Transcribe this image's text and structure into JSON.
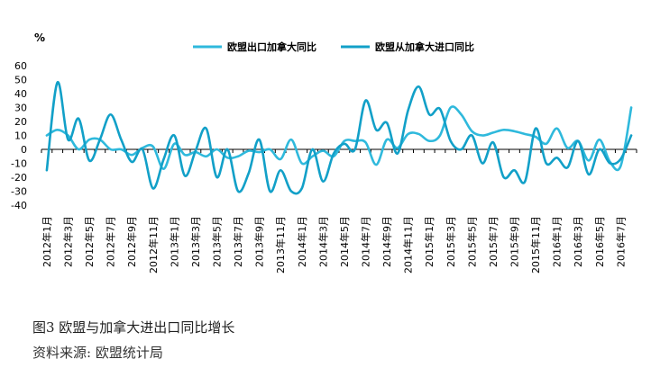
{
  "chart_data": {
    "type": "line",
    "unit_label": "%",
    "ylim": [
      -40,
      60
    ],
    "y_ticks": [
      60,
      50,
      40,
      30,
      20,
      10,
      0,
      -10,
      -20,
      -30,
      -40
    ],
    "categories": [
      "2012年1月",
      "2012年2月",
      "2012年3月",
      "2012年4月",
      "2012年5月",
      "2012年6月",
      "2012年7月",
      "2012年8月",
      "2012年9月",
      "2012年10月",
      "2012年11月",
      "2012年12月",
      "2013年1月",
      "2013年2月",
      "2013年3月",
      "2013年4月",
      "2013年5月",
      "2013年6月",
      "2013年7月",
      "2013年8月",
      "2013年9月",
      "2013年10月",
      "2013年11月",
      "2013年12月",
      "2014年1月",
      "2014年2月",
      "2014年3月",
      "2014年4月",
      "2014年5月",
      "2014年6月",
      "2014年7月",
      "2014年8月",
      "2014年9月",
      "2014年10月",
      "2014年11月",
      "2014年12月",
      "2015年1月",
      "2015年2月",
      "2015年3月",
      "2015年4月",
      "2015年5月",
      "2015年6月",
      "2015年7月",
      "2015年8月",
      "2015年9月",
      "2015年10月",
      "2015年11月",
      "2015年12月",
      "2016年1月",
      "2016年2月",
      "2016年3月",
      "2016年4月",
      "2016年5月",
      "2016年6月",
      "2016年7月",
      "2016年8月"
    ],
    "x_tick_labels": [
      "2012年1月",
      "2012年3月",
      "2012年5月",
      "2012年7月",
      "2012年9月",
      "2012年11月",
      "2013年1月",
      "2013年3月",
      "2013年5月",
      "2013年7月",
      "2013年9月",
      "2013年11月",
      "2014年1月",
      "2014年3月",
      "2014年5月",
      "2014年7月",
      "2014年9月",
      "2014年11月",
      "2015年1月",
      "2015年3月",
      "2015年5月",
      "2015年7月",
      "2015年9月",
      "2015年11月",
      "2016年1月",
      "2016年3月",
      "2016年5月",
      "2016年7月"
    ],
    "series": [
      {
        "name": "欧盟出口加拿大同比",
        "color": "#2fb9dc",
        "values": [
          10,
          14,
          10,
          0,
          7,
          7,
          0,
          0,
          -4,
          1,
          2,
          -14,
          4,
          -4,
          -2,
          -5,
          0,
          -6,
          -5,
          -1,
          -2,
          0,
          -7,
          7,
          -10,
          -5,
          -1,
          -5,
          6,
          6,
          5,
          -11,
          7,
          1,
          11,
          11,
          6,
          10,
          30,
          25,
          13,
          10,
          12,
          14,
          13,
          11,
          9,
          4,
          15,
          1,
          6,
          -8,
          7,
          -9,
          -12,
          30
        ]
      },
      {
        "name": "欧盟从加拿大进口同比",
        "color": "#12a0c8",
        "values": [
          -15,
          48,
          7,
          22,
          -8,
          7,
          25,
          7,
          -9,
          0,
          -28,
          -7,
          10,
          -19,
          -1,
          15,
          -20,
          0,
          -30,
          -17,
          7,
          -30,
          -15,
          -30,
          -28,
          0,
          -23,
          -3,
          4,
          0,
          35,
          14,
          19,
          -3,
          28,
          45,
          25,
          29,
          6,
          0,
          10,
          -10,
          5,
          -20,
          -15,
          -23,
          15,
          -10,
          -6,
          -13,
          6,
          -18,
          0,
          -10,
          -7,
          10
        ]
      }
    ]
  },
  "caption": {
    "title": "图3 欧盟与加拿大进出口同比增长",
    "source": "资料来源: 欧盟统计局"
  }
}
